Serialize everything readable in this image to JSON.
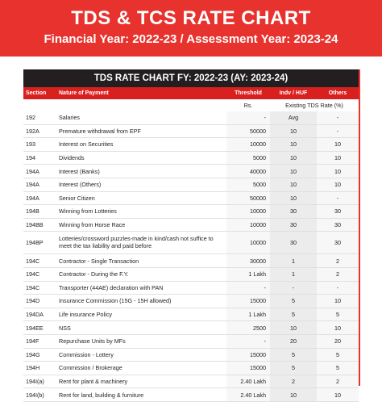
{
  "header": {
    "title": "TDS & TCS RATE CHART",
    "subtitle": "Financial Year: 2022-23 / Assessment Year: 2023-24",
    "banner_color": "#e8322e"
  },
  "table": {
    "title": "TDS RATE CHART FY: 2022-23 (AY: 2023-24)",
    "columns": [
      "Section",
      "Nature of Payment",
      "Threshold",
      "Indv / HUF",
      "Others"
    ],
    "sub_header": {
      "threshold_unit": "Rs.",
      "rate_label": "Existing TDS Rate (%)"
    },
    "rows": [
      {
        "section": "192",
        "nature": "Salaries",
        "threshold": "-",
        "indv": "Avg",
        "others": "-"
      },
      {
        "section": "192A",
        "nature": "Premature withdrawal from EPF",
        "threshold": "50000",
        "indv": "10",
        "others": "-"
      },
      {
        "section": "193",
        "nature": "Interest on Securities",
        "threshold": "10000",
        "indv": "10",
        "others": "10"
      },
      {
        "section": "194",
        "nature": "Dividends",
        "threshold": "5000",
        "indv": "10",
        "others": "10"
      },
      {
        "section": "194A",
        "nature": "Interest (Banks)",
        "threshold": "40000",
        "indv": "10",
        "others": "10"
      },
      {
        "section": "194A",
        "nature": "Interest (Others)",
        "threshold": "5000",
        "indv": "10",
        "others": "10"
      },
      {
        "section": "194A",
        "nature": "Senior Citizen",
        "threshold": "50000",
        "indv": "10",
        "others": "-"
      },
      {
        "section": "194B",
        "nature": "Winning from Lotteries",
        "threshold": "10000",
        "indv": "30",
        "others": "30"
      },
      {
        "section": "194BB",
        "nature": "Winning from Horse Race",
        "threshold": "10000",
        "indv": "30",
        "others": "30"
      },
      {
        "section": "194BP",
        "nature": "Lotteries/crossword puzzles-made in kind/cash not suffice to meet the tax liability and paid before",
        "threshold": "10000",
        "indv": "30",
        "others": "30"
      },
      {
        "section": "194C",
        "nature": "Contractor - Single Transaction",
        "threshold": "30000",
        "indv": "1",
        "others": "2"
      },
      {
        "section": "194C",
        "nature": "Contractor - During the F.Y.",
        "threshold": "1 Lakh",
        "indv": "1",
        "others": "2"
      },
      {
        "section": "194C",
        "nature": "Transporter (44AE) declaration with PAN",
        "threshold": "-",
        "indv": "-",
        "others": "-"
      },
      {
        "section": "194D",
        "nature": "Insurance Commission (15G - 15H allowed)",
        "threshold": "15000",
        "indv": "5",
        "others": "10"
      },
      {
        "section": "194DA",
        "nature": "Life insurance Policy",
        "threshold": "1 Lakh",
        "indv": "5",
        "others": "5"
      },
      {
        "section": "194EE",
        "nature": "NSS",
        "threshold": "2500",
        "indv": "10",
        "others": "10"
      },
      {
        "section": "194F",
        "nature": "Repurchase Units by MFs",
        "threshold": "-",
        "indv": "20",
        "others": "20"
      },
      {
        "section": "194G",
        "nature": "Commission - Lottery",
        "threshold": "15000",
        "indv": "5",
        "others": "5"
      },
      {
        "section": "194H",
        "nature": "Commission / Brokerage",
        "threshold": "15000",
        "indv": "5",
        "others": "5"
      },
      {
        "section": "194I(a)",
        "nature": "Rent for plant & machinery",
        "threshold": "2.40 Lakh",
        "indv": "2",
        "others": "2"
      },
      {
        "section": "194I(b)",
        "nature": "Rent for land, building & furniture",
        "threshold": "2.40 Lakh",
        "indv": "10",
        "others": "10"
      }
    ]
  }
}
